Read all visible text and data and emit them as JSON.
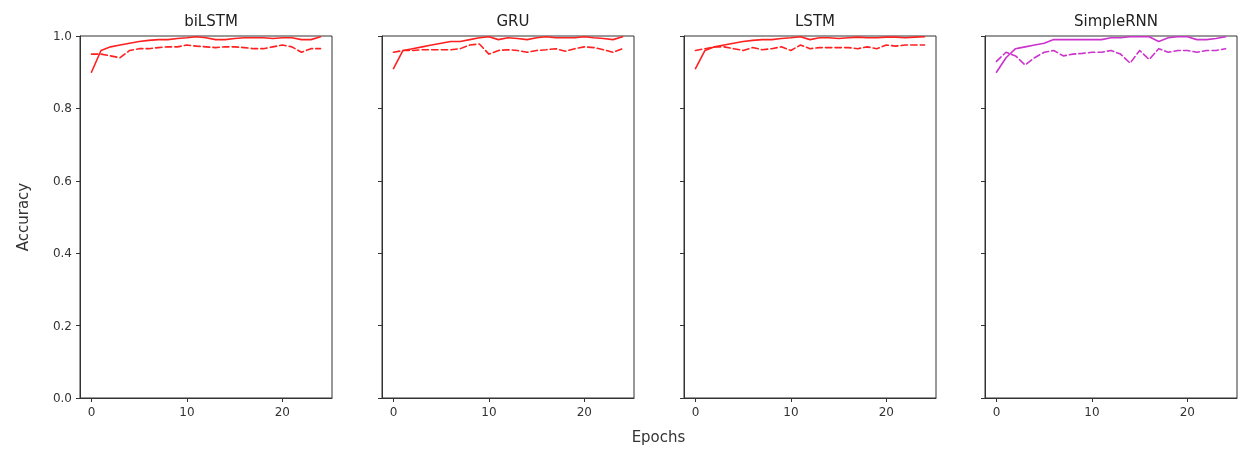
{
  "chart_data": [
    {
      "type": "line",
      "title": "biLSTM",
      "ylabel": "Accuracy",
      "x": [
        0,
        1,
        2,
        3,
        4,
        5,
        6,
        7,
        8,
        9,
        10,
        11,
        12,
        13,
        14,
        15,
        16,
        17,
        18,
        19,
        20,
        21,
        22,
        23,
        24
      ],
      "xlim": [
        -1.2,
        25.2
      ],
      "xticks": [
        0,
        10,
        20
      ],
      "ylim": [
        0,
        1
      ],
      "yticks": [
        {
          "value": 0,
          "label": "0.0"
        },
        {
          "value": 0.2,
          "label": "0.2"
        },
        {
          "value": 0.4,
          "label": "0.4"
        },
        {
          "value": 0.6,
          "label": "0.6"
        },
        {
          "value": 0.8,
          "label": "0.8"
        },
        {
          "value": 1,
          "label": "1.0"
        }
      ],
      "grid": false,
      "marker": "none",
      "series": [
        {
          "color": "#ff2020",
          "line_style": "solid",
          "values": [
            0.9,
            0.96,
            0.97,
            0.975,
            0.98,
            0.985,
            0.988,
            0.99,
            0.99,
            0.993,
            0.995,
            0.998,
            0.995,
            0.99,
            0.99,
            0.993,
            0.995,
            0.995,
            0.995,
            0.993,
            0.995,
            0.995,
            0.99,
            0.99,
            0.998
          ]
        },
        {
          "color": "#ff2020",
          "line_style": "dashed",
          "values": [
            0.95,
            0.95,
            0.945,
            0.94,
            0.96,
            0.965,
            0.965,
            0.968,
            0.97,
            0.97,
            0.975,
            0.972,
            0.97,
            0.968,
            0.97,
            0.97,
            0.968,
            0.965,
            0.965,
            0.97,
            0.975,
            0.97,
            0.955,
            0.965,
            0.965
          ]
        }
      ]
    },
    {
      "type": "line",
      "title": "GRU",
      "xlabel": "Epochs",
      "x": [
        0,
        1,
        2,
        3,
        4,
        5,
        6,
        7,
        8,
        9,
        10,
        11,
        12,
        13,
        14,
        15,
        16,
        17,
        18,
        19,
        20,
        21,
        22,
        23,
        24
      ],
      "xlim": [
        -1.2,
        25.2
      ],
      "xticks": [
        0,
        10,
        20
      ],
      "ylim": [
        0,
        1
      ],
      "yticks": [
        {
          "value": 0,
          "label": null
        },
        {
          "value": 0.2,
          "label": null
        },
        {
          "value": 0.4,
          "label": null
        },
        {
          "value": 0.6,
          "label": null
        },
        {
          "value": 0.8,
          "label": null
        },
        {
          "value": 1,
          "label": null
        }
      ],
      "tick_labels": "x",
      "grid": false,
      "marker": "none",
      "series": [
        {
          "color": "#ff2020",
          "line_style": "solid",
          "values": [
            0.91,
            0.96,
            0.965,
            0.97,
            0.975,
            0.98,
            0.985,
            0.985,
            0.99,
            0.995,
            0.998,
            0.99,
            0.995,
            0.993,
            0.99,
            0.995,
            0.998,
            0.995,
            0.995,
            0.995,
            0.998,
            0.995,
            0.993,
            0.99,
            0.998
          ]
        },
        {
          "color": "#ff2020",
          "line_style": "dashed",
          "values": [
            0.955,
            0.96,
            0.96,
            0.962,
            0.962,
            0.962,
            0.962,
            0.965,
            0.975,
            0.978,
            0.95,
            0.96,
            0.962,
            0.96,
            0.955,
            0.96,
            0.962,
            0.965,
            0.958,
            0.965,
            0.97,
            0.968,
            0.962,
            0.955,
            0.965
          ]
        }
      ]
    },
    {
      "type": "line",
      "title": "LSTM",
      "x": [
        0,
        1,
        2,
        3,
        4,
        5,
        6,
        7,
        8,
        9,
        10,
        11,
        12,
        13,
        14,
        15,
        16,
        17,
        18,
        19,
        20,
        21,
        22,
        23,
        24
      ],
      "xlim": [
        -1.2,
        25.2
      ],
      "xticks": [
        0,
        10,
        20
      ],
      "ylim": [
        0,
        1
      ],
      "yticks": [
        {
          "value": 0,
          "label": null
        },
        {
          "value": 0.2,
          "label": null
        },
        {
          "value": 0.4,
          "label": null
        },
        {
          "value": 0.6,
          "label": null
        },
        {
          "value": 0.8,
          "label": null
        },
        {
          "value": 1,
          "label": null
        }
      ],
      "tick_labels": "x",
      "grid": false,
      "marker": "none",
      "series": [
        {
          "color": "#ff2020",
          "line_style": "solid",
          "values": [
            0.91,
            0.96,
            0.97,
            0.975,
            0.98,
            0.985,
            0.988,
            0.99,
            0.99,
            0.993,
            0.995,
            0.998,
            0.99,
            0.995,
            0.995,
            0.993,
            0.995,
            0.997,
            0.995,
            0.995,
            0.997,
            0.997,
            0.995,
            0.997,
            0.998
          ]
        },
        {
          "color": "#ff2020",
          "line_style": "dashed",
          "values": [
            0.96,
            0.965,
            0.97,
            0.97,
            0.965,
            0.96,
            0.968,
            0.962,
            0.965,
            0.97,
            0.96,
            0.975,
            0.965,
            0.968,
            0.968,
            0.968,
            0.968,
            0.965,
            0.97,
            0.965,
            0.975,
            0.972,
            0.975,
            0.975,
            0.975
          ]
        }
      ]
    },
    {
      "type": "line",
      "title": "SimpleRNN",
      "x": [
        0,
        1,
        2,
        3,
        4,
        5,
        6,
        7,
        8,
        9,
        10,
        11,
        12,
        13,
        14,
        15,
        16,
        17,
        18,
        19,
        20,
        21,
        22,
        23,
        24
      ],
      "xlim": [
        -1.2,
        25.2
      ],
      "xticks": [
        0,
        10,
        20
      ],
      "ylim": [
        0,
        1
      ],
      "yticks": [
        {
          "value": 0,
          "label": null
        },
        {
          "value": 0.2,
          "label": null
        },
        {
          "value": 0.4,
          "label": null
        },
        {
          "value": 0.6,
          "label": null
        },
        {
          "value": 0.8,
          "label": null
        },
        {
          "value": 1,
          "label": null
        }
      ],
      "tick_labels": "x",
      "grid": false,
      "marker": "none",
      "series": [
        {
          "color": "#cc33cc",
          "line_style": "solid",
          "values": [
            0.9,
            0.94,
            0.965,
            0.97,
            0.975,
            0.98,
            0.99,
            0.99,
            0.99,
            0.99,
            0.99,
            0.99,
            0.995,
            0.995,
            0.998,
            0.998,
            0.998,
            0.985,
            0.995,
            0.998,
            0.998,
            0.99,
            0.99,
            0.993,
            0.998
          ]
        },
        {
          "color": "#cc33cc",
          "line_style": "dashed",
          "values": [
            0.93,
            0.955,
            0.945,
            0.92,
            0.94,
            0.955,
            0.96,
            0.945,
            0.95,
            0.952,
            0.955,
            0.955,
            0.96,
            0.95,
            0.925,
            0.96,
            0.935,
            0.965,
            0.955,
            0.96,
            0.96,
            0.955,
            0.96,
            0.96,
            0.965
          ]
        }
      ]
    }
  ]
}
